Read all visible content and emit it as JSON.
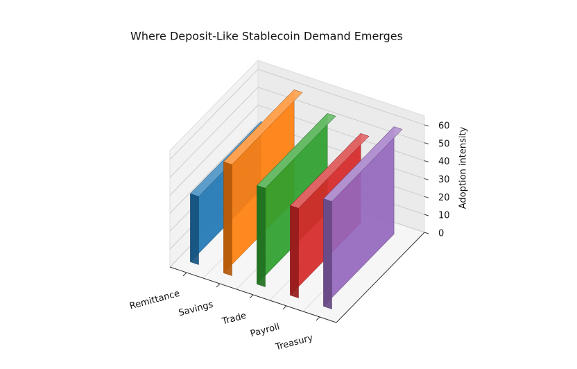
{
  "chart_data": {
    "type": "bar3d",
    "title": "Where Deposit-Like Stablecoin Demand Emerges",
    "categories": [
      "Remittance",
      "Savings",
      "Trade",
      "Payroll",
      "Treasury"
    ],
    "values": [
      38,
      62,
      55,
      50,
      60
    ],
    "colors": [
      "#1f77b4",
      "#ff7f0e",
      "#2ca02c",
      "#d62728",
      "#9467bd"
    ],
    "zlabel": "Adoption intensity",
    "zlim": [
      0,
      65
    ],
    "zticks": [
      0,
      10,
      20,
      30,
      40,
      50,
      60
    ],
    "grid": true
  }
}
